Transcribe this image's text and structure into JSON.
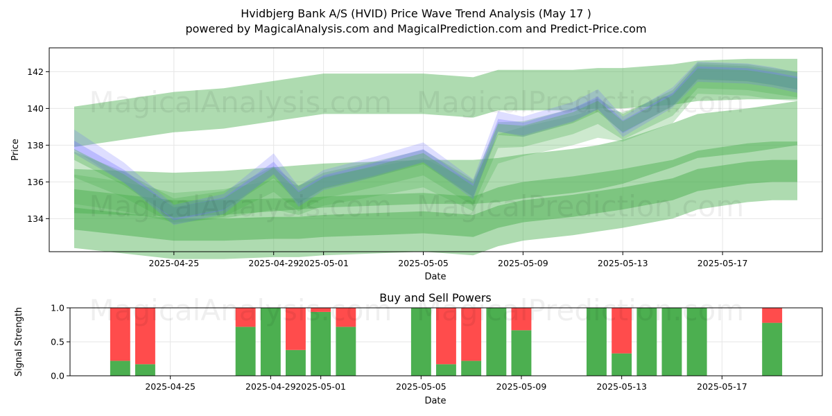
{
  "title_line1": "Hvidbjerg Bank A/S (HVID) Price Wave Trend Analysis (May 17 )",
  "title_line2": "powered by MagicalAnalysis.com and MagicalPrediction.com and Predict-Price.com",
  "watermarks": [
    "MagicalAnalysis.com",
    "MagicalPrediction.com"
  ],
  "colors": {
    "band_green": "#4caf50",
    "band_blue": "#6b6bff",
    "buy": "#4caf50",
    "sell": "#ff4c4c"
  },
  "chart_data": [
    {
      "type": "area",
      "xlabel": "Date",
      "ylabel": "Price",
      "xlim": [
        "2025-04-20",
        "2025-05-21"
      ],
      "ylim": [
        132.2,
        143.3
      ],
      "x_ticks": [
        "2025-04-25",
        "2025-04-29",
        "2025-05-01",
        "2025-05-05",
        "2025-05-09",
        "2025-05-13",
        "2025-05-17"
      ],
      "y_ticks": [
        134,
        136,
        138,
        140,
        142
      ],
      "grid": true,
      "x": [
        "2025-04-21",
        "2025-04-23",
        "2025-04-25",
        "2025-04-27",
        "2025-04-29",
        "2025-04-30",
        "2025-05-01",
        "2025-05-03",
        "2025-05-05",
        "2025-05-07",
        "2025-05-08",
        "2025-05-09",
        "2025-05-11",
        "2025-05-12",
        "2025-05-13",
        "2025-05-15",
        "2025-05-16",
        "2025-05-18",
        "2025-05-19",
        "2025-05-20"
      ],
      "series": [
        {
          "role": "price-wave",
          "values": [
            138.3,
            136.5,
            134.2,
            134.8,
            137.0,
            135.2,
            136.1,
            136.8,
            137.6,
            135.6,
            139.3,
            139.0,
            139.8,
            140.5,
            139.0,
            140.6,
            142.0,
            141.9,
            141.7,
            141.4
          ]
        },
        {
          "role": "wave-band",
          "values": [
            135.6,
            135.2,
            134.6,
            134.8,
            135.3,
            135.0,
            135.5,
            136.0,
            136.5,
            135.2,
            137.8,
            138.2,
            138.8,
            139.2,
            139.0,
            140.0,
            141.6,
            141.5,
            141.3,
            141.2
          ]
        },
        {
          "role": "upper-channel",
          "values": [
            139.0,
            139.4,
            139.8,
            140.0,
            140.4,
            140.6,
            140.8,
            140.8,
            140.8,
            140.6,
            141.0,
            141.0,
            141.0,
            141.1,
            141.1,
            141.3,
            141.5,
            141.6,
            141.6,
            141.6
          ]
        },
        {
          "role": "middle-channel",
          "values": [
            135.5,
            135.4,
            135.3,
            135.4,
            135.6,
            135.7,
            135.8,
            135.9,
            136.0,
            136.0,
            136.1,
            136.3,
            136.6,
            136.8,
            137.1,
            138.0,
            138.5,
            138.8,
            139.0,
            139.2
          ]
        },
        {
          "role": "lower-channel",
          "values": [
            134.0,
            133.7,
            133.4,
            133.4,
            133.5,
            133.5,
            133.6,
            133.7,
            133.8,
            133.6,
            134.1,
            134.4,
            134.7,
            134.9,
            135.1,
            135.6,
            136.1,
            136.5,
            136.6,
            136.6
          ]
        }
      ]
    },
    {
      "type": "bar",
      "title": "Buy and Sell Powers",
      "xlabel": "Date",
      "ylabel": "Signal Strength",
      "ylim": [
        0,
        1
      ],
      "y_ticks": [
        "0.0",
        "0.5",
        "1.0"
      ],
      "x_ticks": [
        "2025-04-25",
        "2025-04-29",
        "2025-05-01",
        "2025-05-05",
        "2025-05-09",
        "2025-05-13",
        "2025-05-17"
      ],
      "xlim": [
        "2025-04-21",
        "2025-05-21"
      ],
      "grid": true,
      "categories": [
        "2025-04-23",
        "2025-04-24",
        "2025-04-28",
        "2025-04-29",
        "2025-04-30",
        "2025-05-01",
        "2025-05-02",
        "2025-05-05",
        "2025-05-06",
        "2025-05-07",
        "2025-05-08",
        "2025-05-09",
        "2025-05-12",
        "2025-05-13",
        "2025-05-14",
        "2025-05-15",
        "2025-05-16",
        "2025-05-19"
      ],
      "series": [
        {
          "name": "buy",
          "values": [
            0.22,
            0.17,
            0.72,
            1.0,
            0.38,
            0.94,
            0.72,
            1.0,
            0.17,
            0.22,
            1.0,
            0.67,
            1.0,
            0.33,
            1.0,
            1.0,
            1.0,
            0.78
          ]
        },
        {
          "name": "sell",
          "values": [
            0.78,
            0.83,
            0.28,
            0.0,
            0.62,
            0.06,
            0.28,
            0.0,
            0.83,
            0.78,
            0.0,
            0.33,
            0.0,
            0.67,
            0.0,
            0.0,
            0.0,
            0.22
          ]
        }
      ]
    }
  ]
}
